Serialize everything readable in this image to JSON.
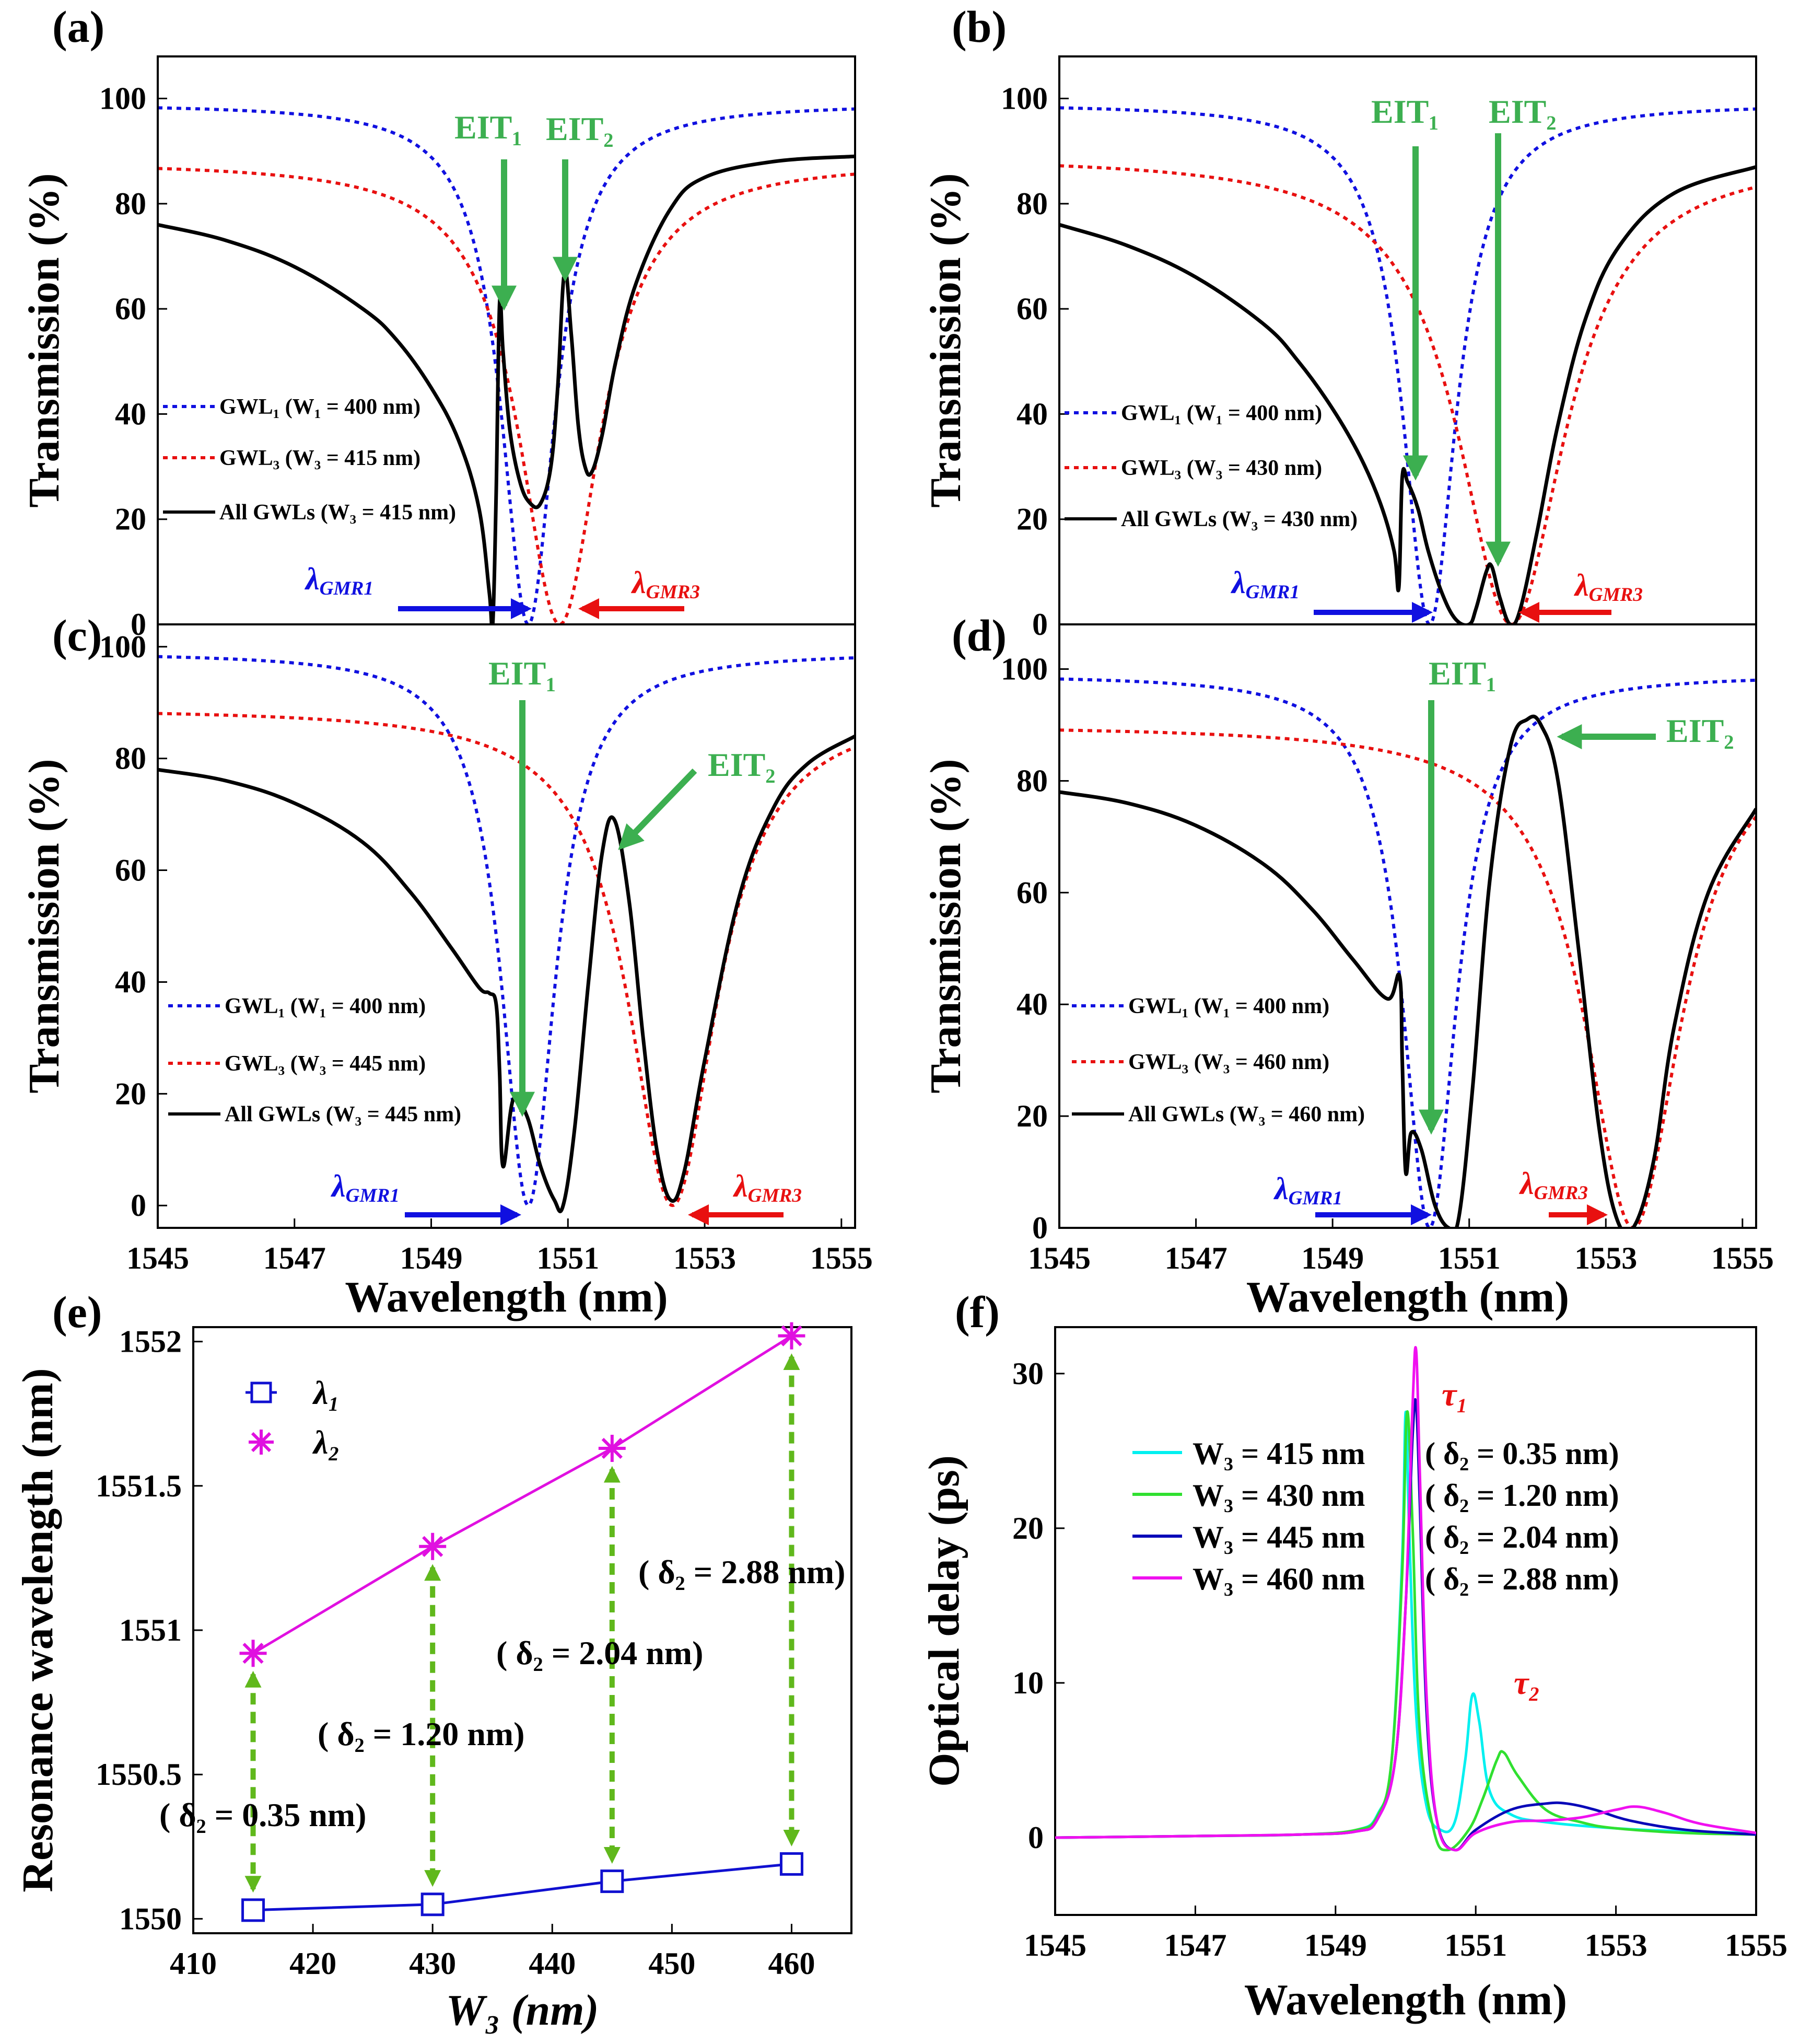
{
  "figure": {
    "colors": {
      "gwl1": "#1010e0",
      "gwl3": "#e81010",
      "all": "#000000",
      "eit": "#3caf50",
      "delta_arrow": "#60b81c",
      "lam1": "#1010d0",
      "lam2": "#e010e0",
      "w415": "#00f0f0",
      "w430": "#30e030",
      "w445": "#0808b8",
      "w460": "#f010f0",
      "tau": "#e81010"
    },
    "gwl1_legend": "GWL₁ (W₁ = 400 nm)",
    "gmr1_symbol": "λ",
    "gmr1_sub": "GMR1",
    "gmr3_symbol": "λ",
    "gmr3_sub": "GMR3",
    "eit1": "EIT₁",
    "eit2": "EIT₂"
  },
  "chart_data": [
    {
      "id": "a",
      "type": "line",
      "panel_label": "(a)",
      "xlabel": "",
      "ylabel": "Transmission (%)",
      "xlim": [
        1545,
        1555.2
      ],
      "ylim": [
        0,
        108
      ],
      "yticks": [
        "0",
        "20",
        "40",
        "60",
        "80",
        "100"
      ],
      "xticks": [],
      "w3_nm": 415,
      "legend": [
        "GWL₁ (W₁ = 400 nm)",
        "GWL₃ (W₃ = 415 nm)",
        "All GWLs (W₃ = 415 nm)"
      ],
      "gwl1": {
        "center": 1550.42,
        "hwhm": 0.48,
        "max": 99
      },
      "gwl3": {
        "center": 1550.88,
        "hwhm": 0.72,
        "max": 88
      },
      "all_gwls": {
        "x": [
          1545,
          1546,
          1547,
          1548,
          1548.5,
          1549,
          1549.4,
          1549.7,
          1549.85,
          1549.9,
          1549.95,
          1550.0,
          1550.05,
          1550.15,
          1550.3,
          1550.45,
          1550.6,
          1550.75,
          1550.85,
          1550.95,
          1551.05,
          1551.15,
          1551.25,
          1551.35,
          1551.5,
          1551.7,
          1552,
          1552.5,
          1553,
          1554,
          1555.2
        ],
        "y": [
          76,
          73,
          68,
          60,
          54,
          45,
          35,
          22,
          6,
          0,
          25,
          61,
          52,
          37,
          27,
          23,
          23,
          30,
          45,
          67,
          55,
          38,
          30,
          29,
          36,
          50,
          65,
          79,
          85,
          88,
          89
        ]
      },
      "eit_labels": [
        "EIT₁",
        "EIT₂"
      ]
    },
    {
      "id": "b",
      "type": "line",
      "panel_label": "(b)",
      "xlabel": "",
      "ylabel": "Transmission (%)",
      "xlim": [
        1545,
        1555.2
      ],
      "ylim": [
        0,
        108
      ],
      "yticks": [
        "0",
        "20",
        "40",
        "60",
        "80",
        "100"
      ],
      "xticks": [],
      "w3_nm": 430,
      "legend": [
        "GWL₁ (W₁ = 400 nm)",
        "GWL₃ (W₃ = 430 nm)",
        "All GWLs (W₃ = 430 nm)"
      ],
      "gwl1": {
        "center": 1550.42,
        "hwhm": 0.48,
        "max": 99
      },
      "gwl3": {
        "center": 1551.62,
        "hwhm": 0.95,
        "max": 89
      },
      "all_gwls": {
        "x": [
          1545,
          1546,
          1547,
          1548,
          1548.5,
          1549,
          1549.4,
          1549.7,
          1549.9,
          1549.97,
          1550.02,
          1550.1,
          1550.25,
          1550.4,
          1550.6,
          1550.8,
          1551.0,
          1551.1,
          1551.25,
          1551.33,
          1551.45,
          1551.6,
          1551.75,
          1552,
          1552.3,
          1552.7,
          1553.2,
          1554,
          1555.2
        ],
        "y": [
          76,
          72,
          66,
          57,
          50,
          41,
          32,
          23,
          14,
          7,
          28,
          27,
          22,
          14,
          6,
          1,
          0,
          3,
          10,
          11,
          5,
          0,
          3,
          18,
          38,
          58,
          72,
          82,
          87
        ]
      },
      "eit_labels": [
        "EIT₁",
        "EIT₂"
      ]
    },
    {
      "id": "c",
      "type": "line",
      "panel_label": "(c)",
      "xlabel": "Wavelength (nm)",
      "ylabel": "Transmission (%)",
      "xlim": [
        1545,
        1555.2
      ],
      "ylim": [
        -4,
        104
      ],
      "yticks": [
        "0",
        "20",
        "40",
        "60",
        "80",
        "100"
      ],
      "xticks": [
        "1545",
        "1547",
        "1549",
        "1551",
        "1553",
        "1555"
      ],
      "w3_nm": 445,
      "legend": [
        "GWL₁ (W₁ = 400 nm)",
        "GWL₃ (W₃ = 445 nm)",
        "All GWLs (W₃ = 445 nm)"
      ],
      "gwl1": {
        "center": 1550.42,
        "hwhm": 0.48,
        "max": 99
      },
      "gwl3": {
        "center": 1552.53,
        "hwhm": 0.78,
        "max": 89
      },
      "all_gwls": {
        "x": [
          1545,
          1546,
          1547,
          1548,
          1548.7,
          1549.3,
          1549.7,
          1549.85,
          1549.95,
          1550.0,
          1550.05,
          1550.2,
          1550.4,
          1550.6,
          1550.8,
          1550.93,
          1551.1,
          1551.3,
          1551.5,
          1551.68,
          1551.9,
          1552.1,
          1552.3,
          1552.5,
          1552.7,
          1553,
          1553.5,
          1554,
          1554.5,
          1555.2
        ],
        "y": [
          78,
          76,
          72,
          65,
          56,
          46,
          39,
          38,
          36,
          24,
          7,
          19,
          16,
          7,
          1,
          0,
          14,
          40,
          63,
          69,
          54,
          30,
          10,
          1,
          6,
          26,
          55,
          71,
          79,
          84
        ]
      },
      "eit_labels": [
        "EIT₁",
        "EIT₂"
      ]
    },
    {
      "id": "d",
      "type": "line",
      "panel_label": "(d)",
      "xlabel": "Wavelength (nm)",
      "ylabel": "Transmission (%)",
      "xlim": [
        1545,
        1555.2
      ],
      "ylim": [
        0,
        108
      ],
      "yticks": [
        "0",
        "20",
        "40",
        "60",
        "80",
        "100"
      ],
      "xticks": [
        "1545",
        "1547",
        "1549",
        "1551",
        "1553",
        "1555"
      ],
      "w3_nm": 460,
      "legend": [
        "GWL₁ (W₁ = 400 nm)",
        "GWL₃ (W₃ = 460 nm)",
        "All GWLs (W₃ = 460 nm)"
      ],
      "gwl1": {
        "center": 1550.42,
        "hwhm": 0.48,
        "max": 99
      },
      "gwl3": {
        "center": 1553.4,
        "hwhm": 0.85,
        "max": 90
      },
      "all_gwls": {
        "x": [
          1545,
          1546,
          1547,
          1548,
          1548.7,
          1549.3,
          1549.8,
          1549.98,
          1550.02,
          1550.07,
          1550.15,
          1550.3,
          1550.5,
          1550.7,
          1550.85,
          1551.05,
          1551.3,
          1551.6,
          1551.85,
          1552.05,
          1552.3,
          1552.6,
          1552.9,
          1553.15,
          1553.4,
          1553.7,
          1554,
          1554.5,
          1555.2
        ],
        "y": [
          78,
          76,
          72,
          65,
          57,
          48,
          41,
          45,
          30,
          10,
          17,
          14,
          4,
          0,
          2,
          25,
          62,
          86,
          91,
          90,
          80,
          50,
          18,
          2,
          0,
          12,
          36,
          60,
          75
        ]
      },
      "eit_labels": [
        "EIT₁",
        "EIT₂"
      ]
    },
    {
      "id": "e",
      "type": "scatter",
      "panel_label": "(e)",
      "xlabel": "W₃ (nm)",
      "ylabel": "Resonance wavelength (nm)",
      "xlim": [
        410,
        465
      ],
      "ylim": [
        1549.95,
        1552.05
      ],
      "xticks": [
        "410",
        "420",
        "430",
        "440",
        "450",
        "460"
      ],
      "yticks": [
        "1550",
        "1550.5",
        "1551",
        "1551.5",
        "1552"
      ],
      "x": [
        415,
        430,
        445,
        460
      ],
      "series": [
        {
          "name": "λ₁",
          "values": [
            1550.03,
            1550.05,
            1550.13,
            1550.19
          ]
        },
        {
          "name": "λ₂",
          "values": [
            1550.92,
            1551.29,
            1551.63,
            1552.02
          ]
        }
      ],
      "legend": [
        "λ₁",
        "λ₂"
      ],
      "annotations": [
        "( δ₂ = 0.35 nm)",
        "( δ₂ = 1.20 nm)",
        "( δ₂ = 2.04 nm)",
        "( δ₂ = 2.88 nm)"
      ]
    },
    {
      "id": "f",
      "type": "line",
      "panel_label": "(f)",
      "xlabel": "Wavelength (nm)",
      "ylabel": "Optical delay (ps)",
      "xlim": [
        1545,
        1555
      ],
      "ylim": [
        -5,
        33
      ],
      "xticks": [
        "1545",
        "1547",
        "1549",
        "1551",
        "1553",
        "1555"
      ],
      "yticks": [
        "0",
        "10",
        "20",
        "30"
      ],
      "series": [
        {
          "name": "W₃ = 415 nm",
          "delta": "( δ₂ = 0.35 nm)",
          "x": [
            1545,
            1547,
            1548.5,
            1549.3,
            1549.6,
            1549.8,
            1549.95,
            1550.0,
            1550.05,
            1550.15,
            1550.3,
            1550.5,
            1550.7,
            1550.85,
            1550.95,
            1551.05,
            1551.2,
            1551.5,
            1552,
            1553,
            1554,
            1555
          ],
          "y": [
            0,
            0.1,
            0.2,
            0.5,
            1.5,
            5,
            18,
            27.5,
            20,
            8,
            2,
            0.5,
            1,
            5,
            9.2,
            7.5,
            3,
            1.5,
            1,
            0.6,
            0.4,
            0.3
          ]
        },
        {
          "name": "W₃ = 430 nm",
          "delta": "( δ₂ = 1.20 nm)",
          "x": [
            1545,
            1547,
            1548.5,
            1549.3,
            1549.6,
            1549.8,
            1549.95,
            1550.02,
            1550.1,
            1550.2,
            1550.4,
            1550.6,
            1550.9,
            1551.1,
            1551.3,
            1551.4,
            1551.6,
            1552,
            1552.5,
            1553,
            1554,
            1555
          ],
          "y": [
            0,
            0.1,
            0.2,
            0.5,
            1.4,
            5,
            17,
            27.5,
            20,
            7,
            0.5,
            -0.8,
            0.5,
            2.5,
            5,
            5.5,
            4,
            1.8,
            1,
            0.6,
            0.3,
            0.2
          ]
        },
        {
          "name": "W₃ = 445 nm",
          "delta": "( δ₂ = 2.04 nm)",
          "x": [
            1545,
            1547,
            1548.5,
            1549.3,
            1549.6,
            1549.85,
            1550.0,
            1550.1,
            1550.15,
            1550.2,
            1550.3,
            1550.45,
            1550.7,
            1551.0,
            1551.5,
            1552.0,
            1552.3,
            1552.7,
            1553.2,
            1554,
            1555
          ],
          "y": [
            0,
            0.1,
            0.2,
            0.4,
            1.2,
            5,
            15,
            26,
            28,
            22,
            8,
            1,
            -0.8,
            0.5,
            1.8,
            2.2,
            2.2,
            1.8,
            1.1,
            0.5,
            0.2
          ]
        },
        {
          "name": "W₃ = 460 nm",
          "delta": "( δ₂ = 2.88 nm)",
          "x": [
            1545,
            1547,
            1548.5,
            1549.3,
            1549.6,
            1549.85,
            1550.0,
            1550.1,
            1550.15,
            1550.2,
            1550.3,
            1550.45,
            1550.7,
            1551.0,
            1551.5,
            1552.0,
            1552.5,
            1553.0,
            1553.3,
            1553.7,
            1554.2,
            1555
          ],
          "y": [
            0,
            0.1,
            0.2,
            0.4,
            1.2,
            5,
            15,
            28,
            31.5,
            24,
            9,
            1,
            -0.8,
            0.3,
            1,
            1.1,
            1.3,
            1.8,
            2,
            1.6,
            0.9,
            0.3
          ]
        }
      ],
      "annotations": [
        "τ₁",
        "τ₂"
      ]
    }
  ]
}
